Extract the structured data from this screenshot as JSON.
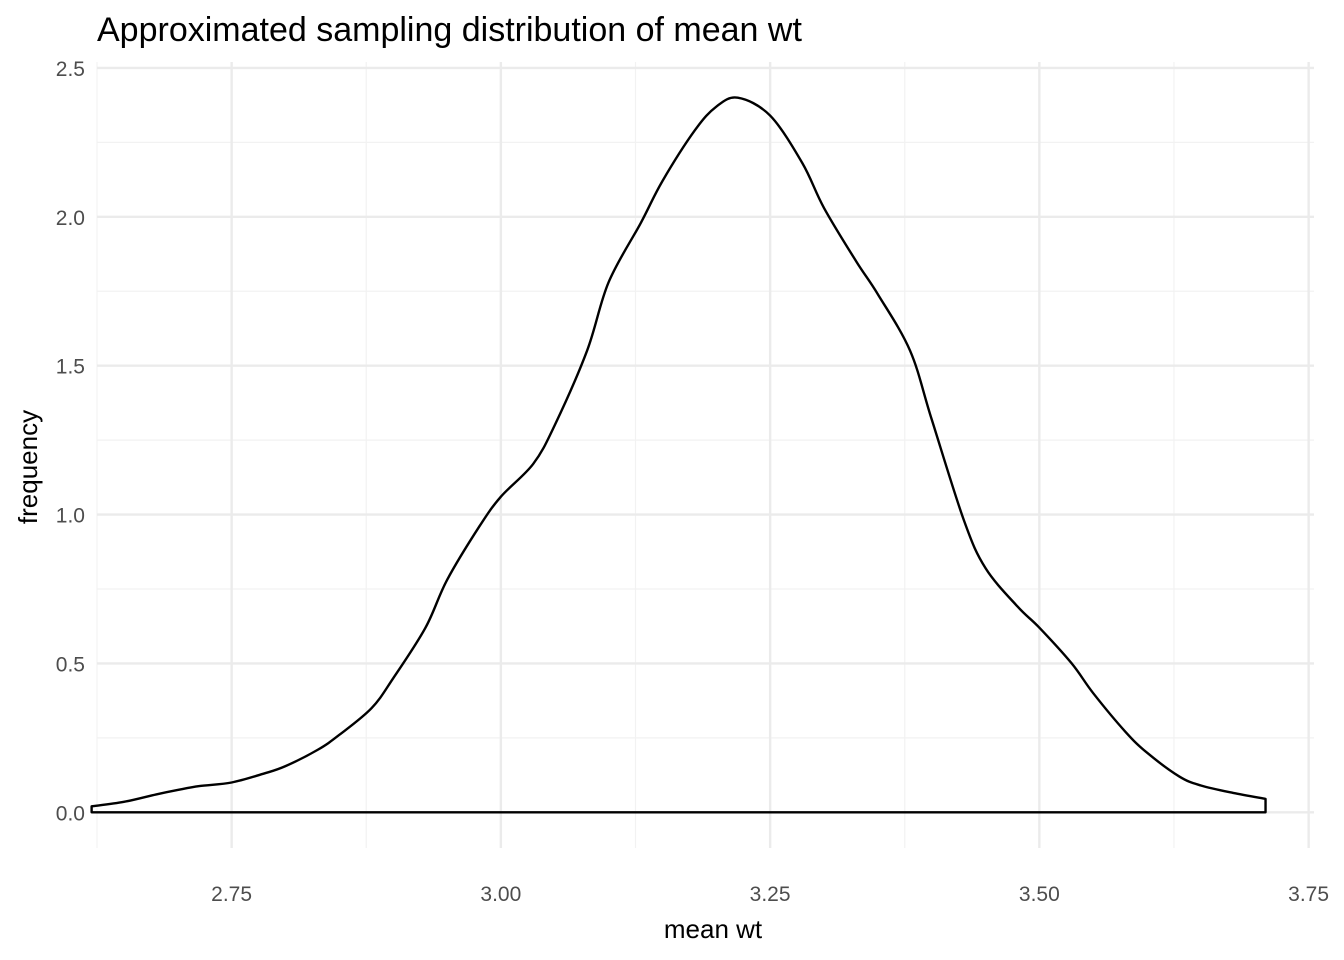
{
  "chart_data": {
    "type": "area",
    "title": "Approximated sampling distribution of mean wt",
    "xlabel": "mean wt",
    "ylabel": "frequency",
    "xlim": [
      2.625,
      3.755
    ],
    "ylim": [
      -0.12,
      2.52
    ],
    "x_major_ticks": [
      2.75,
      3.0,
      3.25,
      3.5,
      3.75
    ],
    "x_tick_labels": [
      "2.75",
      "3.00",
      "3.25",
      "3.50",
      "3.75"
    ],
    "y_major_ticks": [
      0.0,
      0.5,
      1.0,
      1.5,
      2.0,
      2.5
    ],
    "y_tick_labels": [
      "0.0",
      "0.5",
      "1.0",
      "1.5",
      "2.0",
      "2.5"
    ],
    "grid": true,
    "legend": "none",
    "series": [
      {
        "x": [
          2.62,
          2.65,
          2.68,
          2.7,
          2.72,
          2.75,
          2.78,
          2.8,
          2.83,
          2.85,
          2.88,
          2.9,
          2.93,
          2.95,
          2.98,
          3.0,
          3.03,
          3.05,
          3.08,
          3.1,
          3.13,
          3.15,
          3.18,
          3.2,
          3.22,
          3.25,
          3.28,
          3.3,
          3.33,
          3.35,
          3.38,
          3.4,
          3.43,
          3.45,
          3.48,
          3.5,
          3.53,
          3.55,
          3.58,
          3.6,
          3.63,
          3.65,
          3.68,
          3.71
        ],
        "y": [
          0.02,
          0.035,
          0.06,
          0.075,
          0.088,
          0.1,
          0.13,
          0.155,
          0.21,
          0.26,
          0.35,
          0.45,
          0.62,
          0.78,
          0.96,
          1.06,
          1.17,
          1.3,
          1.55,
          1.78,
          1.98,
          2.12,
          2.29,
          2.37,
          2.4,
          2.34,
          2.18,
          2.03,
          1.85,
          1.74,
          1.55,
          1.32,
          0.98,
          0.82,
          0.69,
          0.62,
          0.5,
          0.4,
          0.27,
          0.2,
          0.12,
          0.09,
          0.065,
          0.045
        ]
      }
    ]
  }
}
